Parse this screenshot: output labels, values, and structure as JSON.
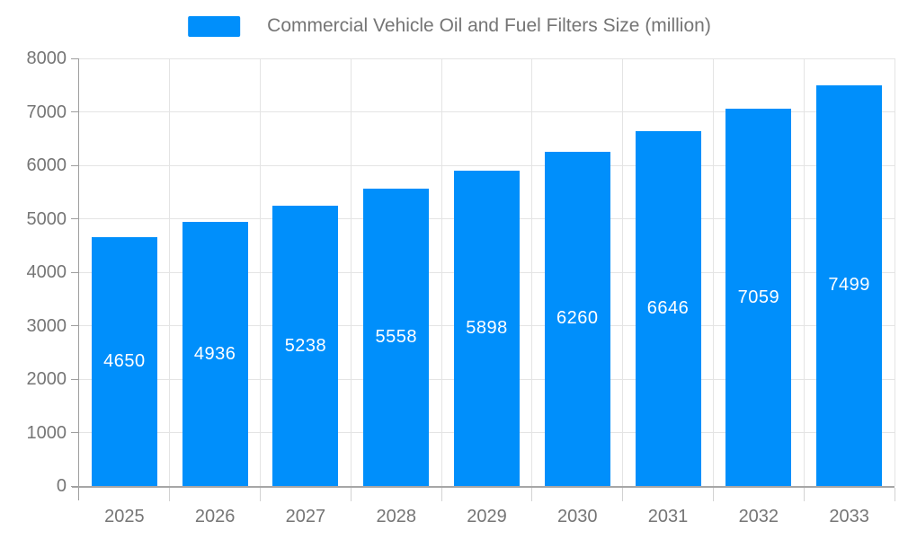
{
  "legend": {
    "label": "Commercial Vehicle Oil and Fuel Filters Size (million)",
    "swatch_color": "#008FFB"
  },
  "chart_data": {
    "type": "bar",
    "title": "Commercial Vehicle Oil and Fuel Filters Size (million)",
    "categories": [
      "2025",
      "2026",
      "2027",
      "2028",
      "2029",
      "2030",
      "2031",
      "2032",
      "2033"
    ],
    "series": [
      {
        "name": "Commercial Vehicle Oil and Fuel Filters Size (million)",
        "values": [
          4650,
          4936,
          5238,
          5558,
          5898,
          6260,
          6646,
          7059,
          7499
        ]
      }
    ],
    "values": [
      4650,
      4936,
      5238,
      5558,
      5898,
      6260,
      6646,
      7059,
      7499
    ],
    "xlabel": "",
    "ylabel": "",
    "ylim": [
      0,
      8000
    ],
    "yticks": [
      0,
      1000,
      2000,
      3000,
      4000,
      5000,
      6000,
      7000,
      8000
    ],
    "grid": true,
    "legend_position": "top",
    "data_labels_position": "inside-center"
  },
  "colors": {
    "bar": "#008FFB",
    "data_label_text": "#ffffff",
    "axis_label_text": "#757575",
    "legend_text": "#757575",
    "gridline": "#e4e4e4",
    "axis_line": "#a6a6a6",
    "y_axis_line": "#9e9e9e",
    "tick": "#d2d2d2",
    "background": "#ffffff"
  }
}
